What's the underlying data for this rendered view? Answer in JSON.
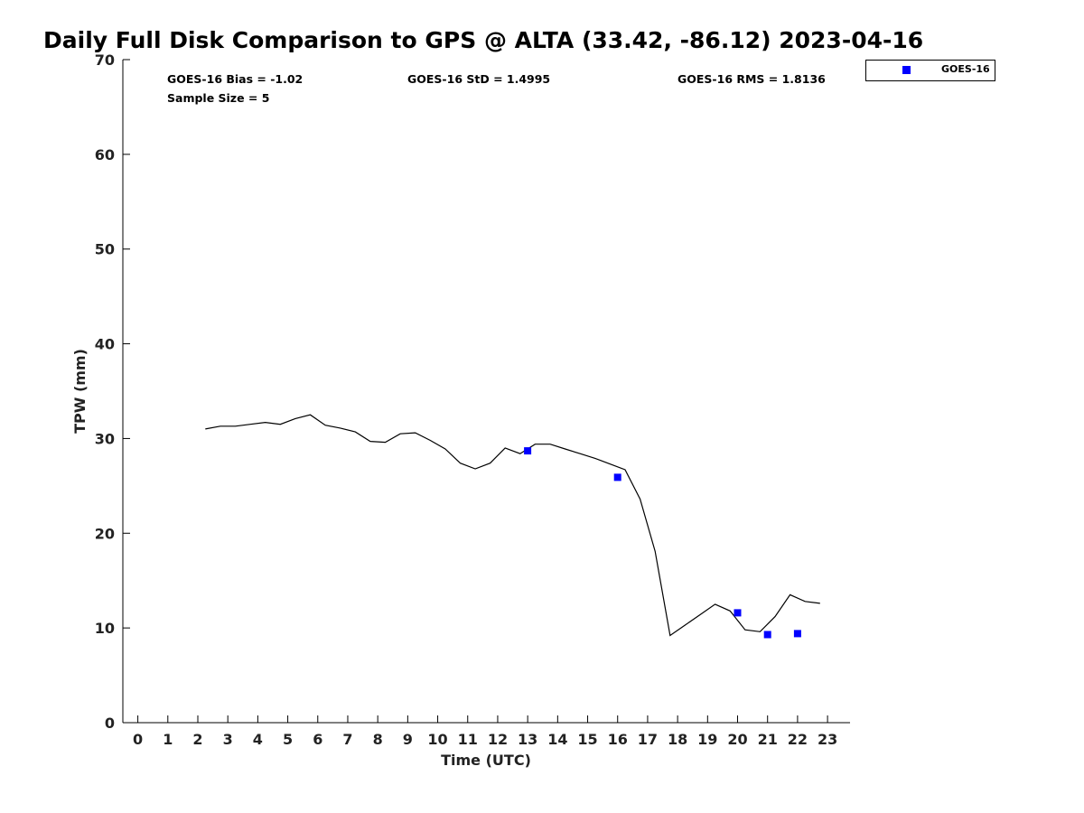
{
  "chart_data": {
    "type": "line",
    "title": "Daily Full Disk Comparison to GPS @ ALTA (33.42, -86.12) 2023-04-16",
    "xlabel": "Time (UTC)",
    "ylabel": "TPW (mm)",
    "xlim": [
      -0.5,
      23.75
    ],
    "ylim": [
      0,
      70
    ],
    "x_ticks": [
      0,
      1,
      2,
      3,
      4,
      5,
      6,
      7,
      8,
      9,
      10,
      11,
      12,
      13,
      14,
      15,
      16,
      17,
      18,
      19,
      20,
      21,
      22,
      23
    ],
    "y_ticks": [
      0,
      10,
      20,
      30,
      40,
      50,
      60,
      70
    ],
    "grid": false,
    "legend_position": "top-right",
    "annotations": {
      "bias": "GOES-16 Bias = -1.02",
      "std": "GOES-16 StD = 1.4995",
      "rms": "GOES-16 RMS = 1.8136",
      "sample": "Sample Size = 5"
    },
    "series": [
      {
        "kind": "line",
        "color": "#000000",
        "x": [
          2.25,
          2.75,
          3.25,
          3.75,
          4.25,
          4.75,
          5.25,
          5.75,
          6.25,
          6.75,
          7.25,
          7.75,
          8.25,
          8.75,
          9.25,
          9.75,
          10.25,
          10.75,
          11.25,
          11.75,
          12.25,
          12.75,
          13.25,
          13.75,
          14.25,
          14.75,
          15.25,
          15.75,
          16.25,
          16.75,
          17.25,
          17.75,
          18.25,
          18.75,
          19.25,
          19.75,
          20.25,
          20.75,
          21.25,
          21.75,
          22.25,
          22.75
        ],
        "y": [
          31.0,
          31.3,
          31.3,
          31.5,
          31.7,
          31.5,
          32.1,
          32.5,
          31.4,
          31.1,
          30.7,
          29.7,
          29.6,
          30.5,
          30.6,
          29.8,
          28.9,
          27.4,
          26.8,
          27.4,
          29.0,
          28.4,
          29.4,
          29.4,
          28.9,
          28.4,
          27.9,
          27.3,
          26.7,
          23.6,
          18.1,
          9.2,
          10.3,
          11.4,
          12.5,
          11.8,
          9.8,
          9.6,
          11.2,
          13.5,
          12.8,
          12.6
        ]
      },
      {
        "name": "GOES-16",
        "kind": "scatter",
        "color": "#0000ff",
        "x": [
          13,
          16,
          20,
          21,
          22
        ],
        "y": [
          28.7,
          25.9,
          11.6,
          9.3,
          9.4
        ]
      }
    ]
  }
}
